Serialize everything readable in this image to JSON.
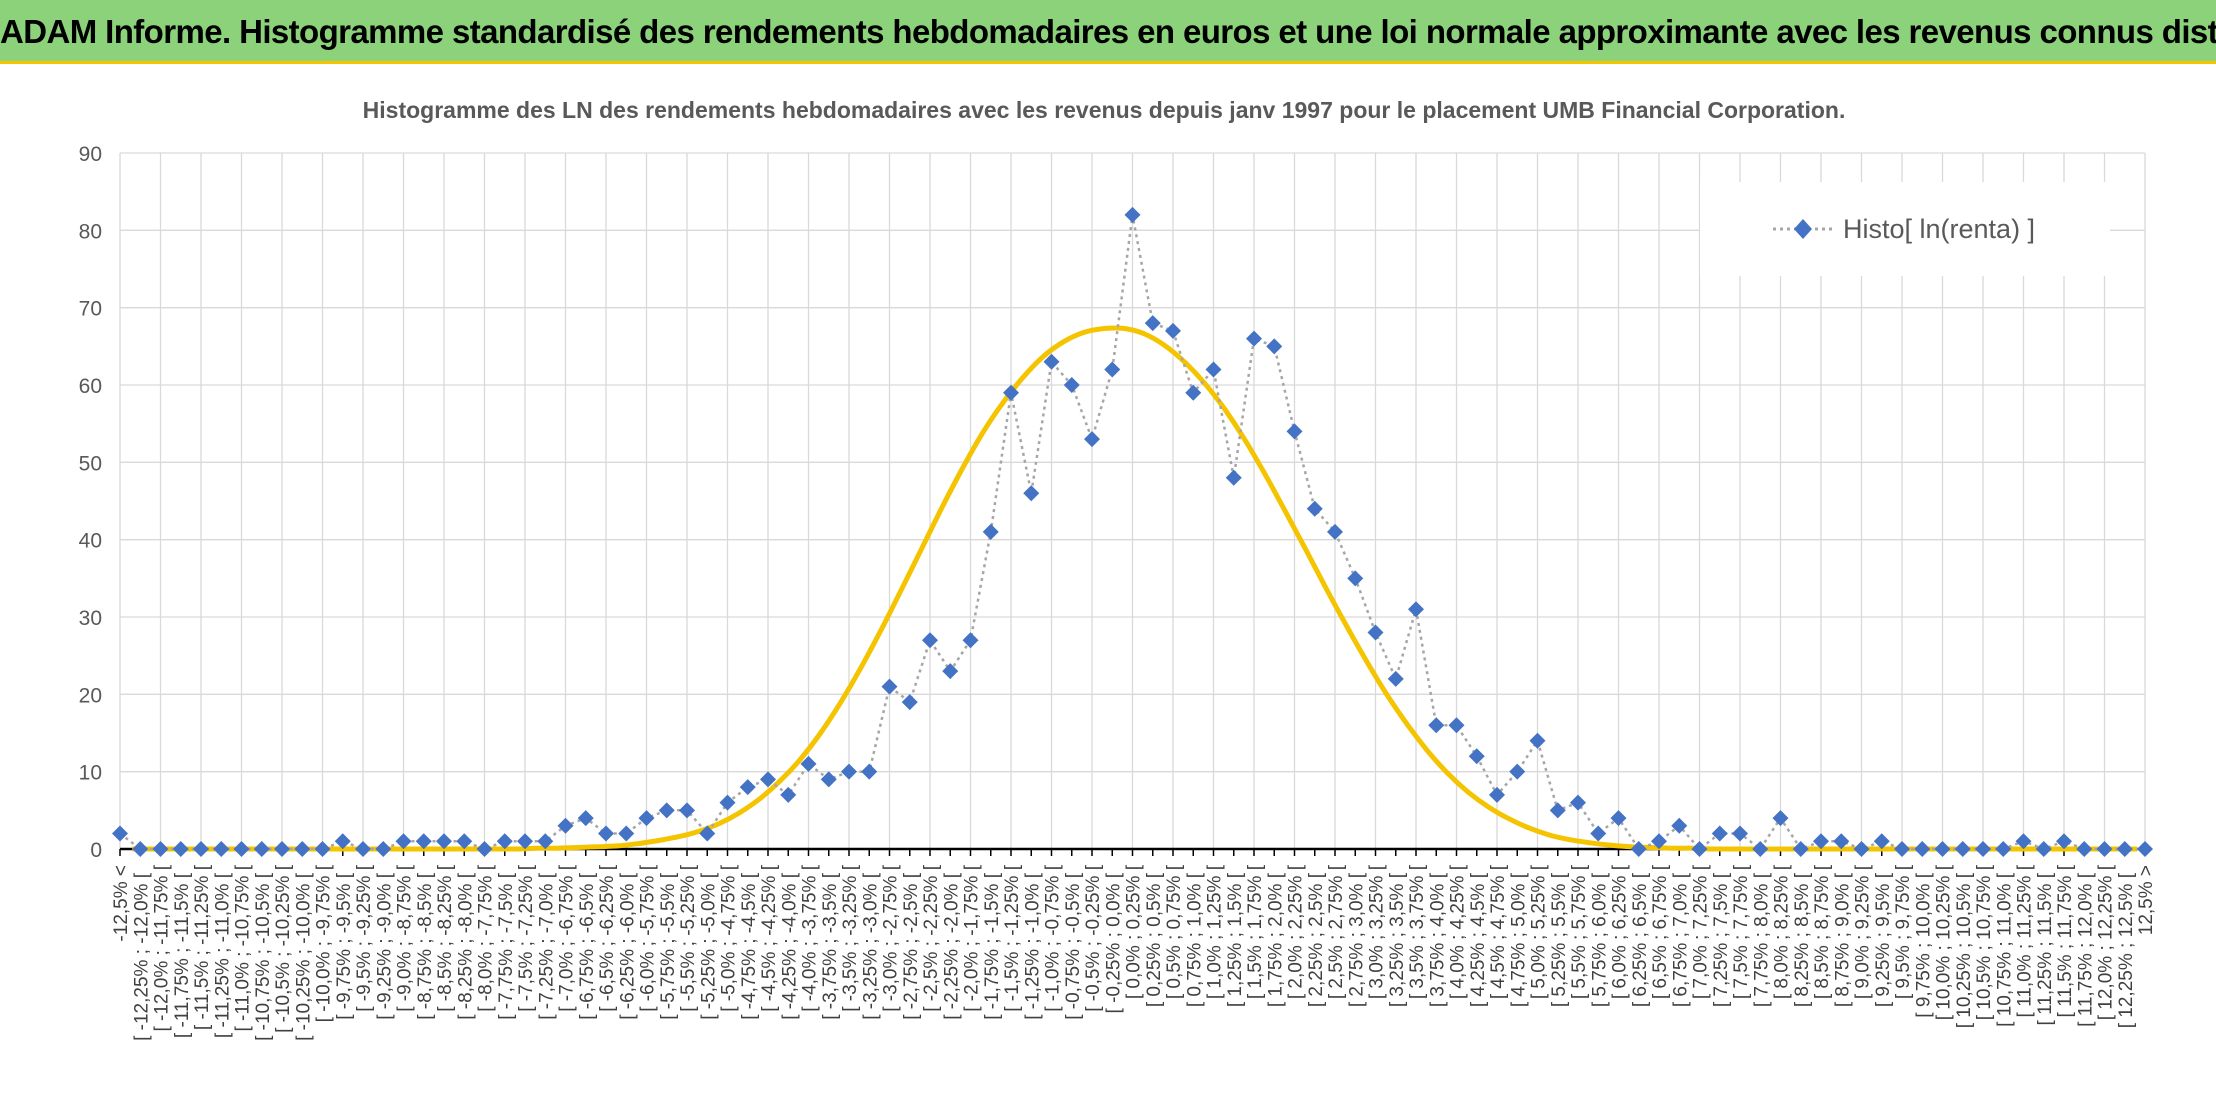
{
  "header": {
    "title": "ADAM Informe. Histogramme standardisé des rendements hebdomadaires en euros et une loi normale approximante avec les revenus connus distribués"
  },
  "chart_data": {
    "type": "line",
    "title": "Histogramme des LN des rendements hebdomadaires avec les revenus depuis janv 1997 pour le placement UMB Financial Corporation.",
    "xlabel": "",
    "ylabel": "",
    "ylim": [
      0,
      90
    ],
    "yticks": [
      0,
      10,
      20,
      30,
      40,
      50,
      60,
      70,
      80,
      90
    ],
    "grid": true,
    "legend_position": "top-right",
    "categories": [
      "-12,5% <",
      "[ -12,25% ; -12,0% [",
      "[ -12,0% ; -11,75% [",
      "[ -11,75% ; -11,5% [",
      "[ -11,5% ; -11,25% [",
      "[ -11,25% ; -11,0% [",
      "[ -11,0% ; -10,75% [",
      "[ -10,75% ; -10,5% [",
      "[ -10,5% ; -10,25% [",
      "[ -10,25% ; -10,0% [",
      "[ -10,0% ; -9,75% [",
      "[ -9,75% ; -9,5% [",
      "[ -9,5% ; -9,25% [",
      "[ -9,25% ; -9,0% [",
      "[ -9,0% ; -8,75% [",
      "[ -8,75% ; -8,5% [",
      "[ -8,5% ; -8,25% [",
      "[ -8,25% ; -8,0% [",
      "[ -8,0% ; -7,75% [",
      "[ -7,75% ; -7,5% [",
      "[ -7,5% ; -7,25% [",
      "[ -7,25% ; -7,0% [",
      "[ -7,0% ; -6,75% [",
      "[ -6,75% ; -6,5% [",
      "[ -6,5% ; -6,25% [",
      "[ -6,25% ; -6,0% [",
      "[ -6,0% ; -5,75% [",
      "[ -5,75% ; -5,5% [",
      "[ -5,5% ; -5,25% [",
      "[ -5,25% ; -5,0% [",
      "[ -5,0% ; -4,75% [",
      "[ -4,75% ; -4,5% [",
      "[ -4,5% ; -4,25% [",
      "[ -4,25% ; -4,0% [",
      "[ -4,0% ; -3,75% [",
      "[ -3,75% ; -3,5% [",
      "[ -3,5% ; -3,25% [",
      "[ -3,25% ; -3,0% [",
      "[ -3,0% ; -2,75% [",
      "[ -2,75% ; -2,5% [",
      "[ -2,5% ; -2,25% [",
      "[ -2,25% ; -2,0% [",
      "[ -2,0% ; -1,75% [",
      "[ -1,75% ; -1,5% [",
      "[ -1,5% ; -1,25% [",
      "[ -1,25% ; -1,0% [",
      "[ -1,0% ; -0,75% [",
      "[ -0,75% ; -0,5% [",
      "[ -0,5% ; -0,25% [",
      "[ -0,25% ; 0,0% [",
      "[ 0,0% ; 0,25% [",
      "[ 0,25% ; 0,5% [",
      "[ 0,5% ; 0,75% [",
      "[ 0,75% ; 1,0% [",
      "[ 1,0% ; 1,25% [",
      "[ 1,25% ; 1,5% [",
      "[ 1,5% ; 1,75% [",
      "[ 1,75% ; 2,0% [",
      "[ 2,0% ; 2,25% [",
      "[ 2,25% ; 2,5% [",
      "[ 2,5% ; 2,75% [",
      "[ 2,75% ; 3,0% [",
      "[ 3,0% ; 3,25% [",
      "[ 3,25% ; 3,5% [",
      "[ 3,5% ; 3,75% [",
      "[ 3,75% ; 4,0% [",
      "[ 4,0% ; 4,25% [",
      "[ 4,25% ; 4,5% [",
      "[ 4,5% ; 4,75% [",
      "[ 4,75% ; 5,0% [",
      "[ 5,0% ; 5,25% [",
      "[ 5,25% ; 5,5% [",
      "[ 5,5% ; 5,75% [",
      "[ 5,75% ; 6,0% [",
      "[ 6,0% ; 6,25% [",
      "[ 6,25% ; 6,5% [",
      "[ 6,5% ; 6,75% [",
      "[ 6,75% ; 7,0% [",
      "[ 7,0% ; 7,25% [",
      "[ 7,25% ; 7,5% [",
      "[ 7,5% ; 7,75% [",
      "[ 7,75% ; 8,0% [",
      "[ 8,0% ; 8,25% [",
      "[ 8,25% ; 8,5% [",
      "[ 8,5% ; 8,75% [",
      "[ 8,75% ; 9,0% [",
      "[ 9,0% ; 9,25% [",
      "[ 9,25% ; 9,5% [",
      "[ 9,5% ; 9,75% [",
      "[ 9,75% ; 10,0% [",
      "[ 10,0% ; 10,25% [",
      "[ 10,25% ; 10,5% [",
      "[ 10,5% ; 10,75% [",
      "[ 10,75% ; 11,0% [",
      "[ 11,0% ; 11,25% [",
      "[ 11,25% ; 11,5% [",
      "[ 11,5% ; 11,75% [",
      "[ 11,75% ; 12,0% [",
      "[ 12,0% ; 12,25% [",
      "[ 12,25% ; 12,5% [",
      "12,5% >"
    ],
    "series": [
      {
        "name": "Histo[ ln(renta) ]",
        "color": "#4472c4",
        "style": "dotted-line-with-diamond-markers",
        "values": [
          2,
          0,
          0,
          0,
          0,
          0,
          0,
          0,
          0,
          0,
          0,
          1,
          0,
          0,
          1,
          1,
          1,
          1,
          0,
          1,
          1,
          1,
          3,
          4,
          2,
          2,
          4,
          5,
          5,
          2,
          6,
          8,
          9,
          7,
          11,
          9,
          10,
          10,
          21,
          19,
          27,
          23,
          27,
          41,
          59,
          46,
          63,
          60,
          53,
          62,
          82,
          68,
          67,
          59,
          62,
          48,
          66,
          65,
          54,
          44,
          41,
          35,
          28,
          22,
          31,
          16,
          16,
          12,
          7,
          10,
          14,
          5,
          6,
          2,
          4,
          0,
          1,
          3,
          0,
          2,
          2,
          0,
          4,
          0,
          1,
          1,
          0,
          1,
          0,
          0,
          0,
          0,
          0,
          0,
          1,
          0,
          1,
          0,
          0,
          0,
          0
        ]
      },
      {
        "name": "",
        "color": "#f5c400",
        "style": "smooth-line",
        "values": [
          0,
          0,
          0,
          0,
          0,
          0,
          0,
          0,
          0,
          0,
          0,
          0,
          0,
          0,
          0,
          0,
          0,
          0,
          0,
          0,
          0.1,
          0.1,
          0.2,
          0.3,
          0.4,
          0.7,
          1.1,
          1.6,
          2.3,
          3.3,
          4.7,
          6.5,
          8.8,
          11.6,
          15.0,
          19.0,
          23.5,
          28.4,
          33.6,
          38.9,
          44.2,
          49.2,
          53.8,
          57.7,
          61.0,
          63.7,
          65.6,
          66.8,
          67.3,
          67.3,
          66.6,
          65.1,
          62.9,
          60.1,
          56.7,
          52.7,
          48.2,
          43.4,
          38.5,
          33.5,
          28.7,
          24.1,
          19.8,
          16.0,
          12.6,
          9.7,
          7.3,
          5.4,
          3.9,
          2.7,
          1.8,
          1.2,
          0.8,
          0.5,
          0.3,
          0.2,
          0.1,
          0.1,
          0,
          0,
          0,
          0,
          0,
          0,
          0,
          0,
          0,
          0,
          0,
          0,
          0,
          0,
          0,
          0,
          0,
          0,
          0,
          0,
          0,
          0,
          0
        ],
        "note_x_offset_categories": 0.6
      }
    ]
  }
}
